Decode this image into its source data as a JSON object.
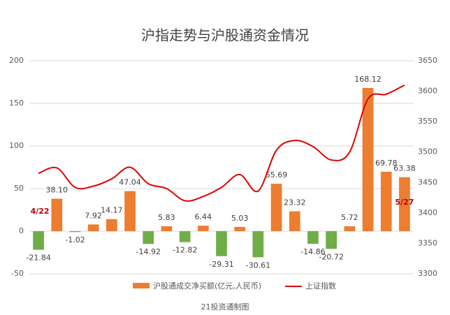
{
  "chart_data": {
    "type": "bar_line",
    "title": "沪指走势与沪股通资金情况",
    "footer": "21投资通制图",
    "annotations": [
      "4/22",
      "5/27"
    ],
    "categories": [
      null,
      null,
      null,
      null,
      null,
      null,
      null,
      null,
      null,
      null,
      null,
      null,
      null,
      null,
      null,
      null,
      null,
      null,
      null,
      null,
      null
    ],
    "series": [
      {
        "name": "沪股通成交净买额(亿元,人民币)",
        "color": "#ed7d31",
        "negative_color": "#70ad47",
        "values": [
          -21.84,
          38.1,
          -1.02,
          7.92,
          14.17,
          47.04,
          -14.92,
          5.83,
          -12.82,
          6.44,
          -29.31,
          5.03,
          -30.61,
          55.69,
          23.32,
          -14.86,
          -20.72,
          5.72,
          168.12,
          69.78,
          63.38
        ],
        "value_labels": [
          "-21.84",
          "38.10",
          "-1.02",
          "7.92",
          "14.17",
          "47.04",
          "-14.92",
          "5.83",
          "-12.82",
          "6.44",
          "-29.31",
          "5.03",
          "-30.61",
          "55.69",
          "23.32",
          "-14.86",
          "-20.72",
          "5.72",
          "168.12",
          "69.78",
          "63.38"
        ]
      },
      {
        "name": "上证指数",
        "color": "#e00000",
        "axis": "y2",
        "values": [
          3465,
          3474,
          3442,
          3444,
          3456,
          3475,
          3448,
          3440,
          3420,
          3427,
          3442,
          3463,
          3436,
          3503,
          3519,
          3509,
          3487,
          3500,
          3587,
          3595,
          3610
        ]
      }
    ],
    "ylim": [
      -50,
      200
    ],
    "yticks": [
      -50,
      0,
      50,
      100,
      150,
      200
    ],
    "y2lim": [
      3300,
      3650
    ],
    "y2ticks": [
      3300,
      3350,
      3400,
      3450,
      3500,
      3550,
      3600,
      3650
    ],
    "grid": true
  }
}
